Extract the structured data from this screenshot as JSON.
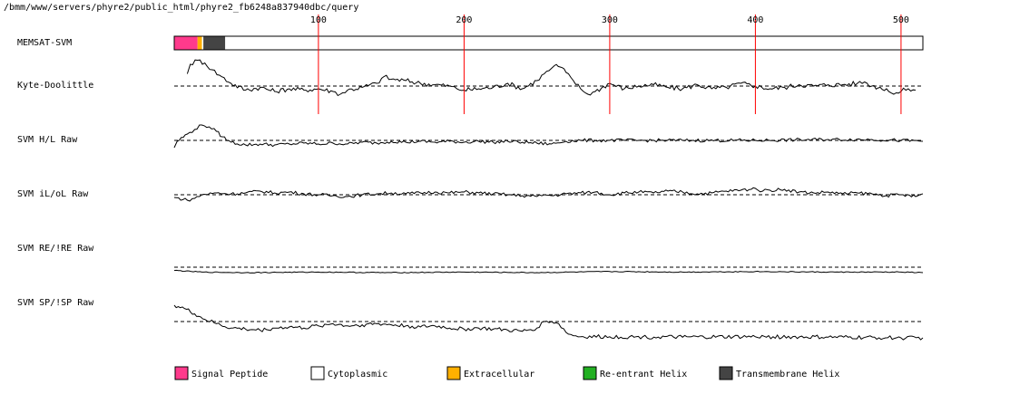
{
  "title": "/bmm/www/servers/phyre2/public_html/phyre2_fb6248a837940dbc/query",
  "chart_data": {
    "type": "line",
    "sequence_length": 515,
    "x_ticks": [
      100,
      200,
      300,
      400,
      500
    ],
    "tracks": [
      {
        "name": "MEMSAT-SVM",
        "kind": "topology",
        "segments": [
          {
            "label": "Signal Peptide",
            "start": 1,
            "end": 17
          },
          {
            "label": "Extracellular",
            "start": 17,
            "end": 20
          },
          {
            "label": "Cytoplasmic",
            "start": 20,
            "end": 21
          },
          {
            "label": "Transmembrane Helix",
            "start": 21,
            "end": 36
          },
          {
            "label": "Cytoplasmic",
            "start": 36,
            "end": 515
          }
        ]
      },
      {
        "name": "Kyte-Doolittle",
        "kind": "line",
        "ylim": [
          -1,
          1
        ],
        "baseline": 0,
        "points": [
          [
            10,
            0.45
          ],
          [
            12,
            0.8
          ],
          [
            17,
            0.95
          ],
          [
            22,
            0.85
          ],
          [
            27,
            0.6
          ],
          [
            32,
            0.4
          ],
          [
            40,
            0.1
          ],
          [
            50,
            -0.15
          ],
          [
            60,
            -0.05
          ],
          [
            70,
            -0.2
          ],
          [
            80,
            -0.1
          ],
          [
            90,
            -0.15
          ],
          [
            100,
            -0.1
          ],
          [
            110,
            -0.2
          ],
          [
            115,
            -0.3
          ],
          [
            120,
            -0.15
          ],
          [
            130,
            -0.05
          ],
          [
            140,
            0.1
          ],
          [
            145,
            0.35
          ],
          [
            150,
            0.25
          ],
          [
            160,
            0.2
          ],
          [
            170,
            0.1
          ],
          [
            180,
            0.05
          ],
          [
            190,
            0.0
          ],
          [
            195,
            -0.1
          ],
          [
            200,
            -0.15
          ],
          [
            210,
            -0.1
          ],
          [
            220,
            -0.05
          ],
          [
            230,
            0.1
          ],
          [
            240,
            -0.1
          ],
          [
            250,
            0.2
          ],
          [
            255,
            0.45
          ],
          [
            260,
            0.65
          ],
          [
            262,
            0.75
          ],
          [
            266,
            0.7
          ],
          [
            270,
            0.5
          ],
          [
            275,
            0.2
          ],
          [
            280,
            -0.1
          ],
          [
            285,
            -0.3
          ],
          [
            290,
            -0.2
          ],
          [
            300,
            0.1
          ],
          [
            310,
            -0.1
          ],
          [
            320,
            0.0
          ],
          [
            330,
            0.05
          ],
          [
            340,
            -0.05
          ],
          [
            350,
            -0.1
          ],
          [
            360,
            0.05
          ],
          [
            370,
            -0.1
          ],
          [
            380,
            -0.05
          ],
          [
            390,
            0.1
          ],
          [
            400,
            0.0
          ],
          [
            410,
            -0.1
          ],
          [
            420,
            -0.05
          ],
          [
            430,
            0.05
          ],
          [
            440,
            0.0
          ],
          [
            450,
            0.05
          ],
          [
            460,
            0.05
          ],
          [
            470,
            0.1
          ],
          [
            475,
            0.15
          ],
          [
            480,
            0.0
          ],
          [
            490,
            -0.1
          ],
          [
            495,
            -0.3
          ],
          [
            500,
            -0.2
          ],
          [
            505,
            -0.1
          ],
          [
            510,
            -0.15
          ]
        ]
      },
      {
        "name": "SVM H/L Raw",
        "kind": "line",
        "ylim": [
          -1,
          1
        ],
        "baseline": 0,
        "points": [
          [
            1,
            -0.4
          ],
          [
            3,
            -0.05
          ],
          [
            10,
            0.35
          ],
          [
            15,
            0.6
          ],
          [
            20,
            0.85
          ],
          [
            25,
            0.75
          ],
          [
            30,
            0.5
          ],
          [
            34,
            0.2
          ],
          [
            40,
            -0.1
          ],
          [
            50,
            -0.25
          ],
          [
            60,
            -0.2
          ],
          [
            70,
            -0.25
          ],
          [
            80,
            -0.2
          ],
          [
            90,
            -0.15
          ],
          [
            100,
            -0.2
          ],
          [
            110,
            -0.15
          ],
          [
            120,
            -0.2
          ],
          [
            130,
            -0.1
          ],
          [
            140,
            -0.15
          ],
          [
            150,
            -0.05
          ],
          [
            160,
            -0.1
          ],
          [
            170,
            -0.05
          ],
          [
            180,
            -0.1
          ],
          [
            190,
            -0.05
          ],
          [
            200,
            -0.1
          ],
          [
            210,
            -0.05
          ],
          [
            220,
            -0.1
          ],
          [
            230,
            -0.05
          ],
          [
            240,
            -0.1
          ],
          [
            250,
            -0.15
          ],
          [
            260,
            -0.2
          ],
          [
            270,
            -0.05
          ],
          [
            280,
            0.0
          ],
          [
            290,
            0.0
          ],
          [
            300,
            0.0
          ],
          [
            320,
            0.0
          ],
          [
            350,
            0.0
          ],
          [
            400,
            0.0
          ],
          [
            450,
            0.05
          ],
          [
            480,
            0.05
          ],
          [
            500,
            0.0
          ],
          [
            515,
            -0.05
          ]
        ]
      },
      {
        "name": "SVM iL/oL Raw",
        "kind": "line",
        "ylim": [
          -1,
          1
        ],
        "baseline": 0,
        "points": [
          [
            1,
            -0.15
          ],
          [
            10,
            -0.3
          ],
          [
            15,
            -0.2
          ],
          [
            20,
            0.0
          ],
          [
            30,
            0.1
          ],
          [
            40,
            0.05
          ],
          [
            50,
            0.1
          ],
          [
            60,
            0.2
          ],
          [
            70,
            0.1
          ],
          [
            80,
            0.15
          ],
          [
            90,
            0.05
          ],
          [
            100,
            0.0
          ],
          [
            110,
            -0.05
          ],
          [
            120,
            -0.1
          ],
          [
            130,
            0.0
          ],
          [
            140,
            0.05
          ],
          [
            150,
            0.1
          ],
          [
            160,
            0.05
          ],
          [
            170,
            0.1
          ],
          [
            180,
            0.15
          ],
          [
            190,
            0.1
          ],
          [
            200,
            0.15
          ],
          [
            210,
            0.1
          ],
          [
            220,
            0.05
          ],
          [
            230,
            0.0
          ],
          [
            240,
            -0.05
          ],
          [
            250,
            -0.1
          ],
          [
            255,
            0.0
          ],
          [
            260,
            -0.05
          ],
          [
            270,
            0.05
          ],
          [
            280,
            0.1
          ],
          [
            290,
            0.15
          ],
          [
            300,
            0.0
          ],
          [
            310,
            0.1
          ],
          [
            320,
            0.15
          ],
          [
            330,
            0.1
          ],
          [
            340,
            0.2
          ],
          [
            350,
            0.15
          ],
          [
            360,
            0.05
          ],
          [
            370,
            0.1
          ],
          [
            380,
            0.2
          ],
          [
            390,
            0.25
          ],
          [
            400,
            0.35
          ],
          [
            405,
            0.2
          ],
          [
            410,
            0.25
          ],
          [
            420,
            0.3
          ],
          [
            430,
            0.15
          ],
          [
            440,
            0.1
          ],
          [
            450,
            0.15
          ],
          [
            460,
            0.05
          ],
          [
            470,
            0.1
          ],
          [
            480,
            0.05
          ],
          [
            490,
            -0.05
          ],
          [
            500,
            0.0
          ],
          [
            510,
            -0.1
          ],
          [
            515,
            0.05
          ]
        ]
      },
      {
        "name": "SVM RE/!RE Raw",
        "kind": "line",
        "ylim": [
          -1,
          1
        ],
        "baseline": 0,
        "points": [
          [
            1,
            -0.3
          ],
          [
            20,
            -0.45
          ],
          [
            50,
            -0.5
          ],
          [
            100,
            -0.45
          ],
          [
            150,
            -0.5
          ],
          [
            200,
            -0.45
          ],
          [
            250,
            -0.5
          ],
          [
            300,
            -0.4
          ],
          [
            350,
            -0.45
          ],
          [
            400,
            -0.4
          ],
          [
            450,
            -0.45
          ],
          [
            500,
            -0.45
          ],
          [
            515,
            -0.5
          ]
        ]
      },
      {
        "name": "SVM SP/!SP Raw",
        "kind": "line",
        "ylim": [
          -1,
          1
        ],
        "baseline": 0,
        "points": [
          [
            1,
            0.75
          ],
          [
            8,
            0.6
          ],
          [
            15,
            0.35
          ],
          [
            22,
            0.1
          ],
          [
            30,
            -0.1
          ],
          [
            40,
            -0.3
          ],
          [
            50,
            -0.35
          ],
          [
            60,
            -0.4
          ],
          [
            70,
            -0.3
          ],
          [
            80,
            -0.25
          ],
          [
            90,
            -0.3
          ],
          [
            100,
            -0.2
          ],
          [
            110,
            -0.1
          ],
          [
            120,
            -0.2
          ],
          [
            130,
            -0.15
          ],
          [
            140,
            -0.1
          ],
          [
            150,
            -0.15
          ],
          [
            160,
            -0.2
          ],
          [
            170,
            -0.25
          ],
          [
            180,
            -0.2
          ],
          [
            190,
            -0.3
          ],
          [
            200,
            -0.35
          ],
          [
            210,
            -0.3
          ],
          [
            220,
            -0.35
          ],
          [
            230,
            -0.4
          ],
          [
            240,
            -0.45
          ],
          [
            250,
            -0.3
          ],
          [
            255,
            0.0
          ],
          [
            260,
            0.0
          ],
          [
            265,
            -0.1
          ],
          [
            270,
            -0.5
          ],
          [
            275,
            -0.65
          ],
          [
            280,
            -0.7
          ],
          [
            300,
            -0.7
          ],
          [
            350,
            -0.72
          ],
          [
            400,
            -0.7
          ],
          [
            450,
            -0.72
          ],
          [
            500,
            -0.75
          ],
          [
            515,
            -0.75
          ]
        ]
      }
    ],
    "legend": [
      {
        "label": "Signal Peptide",
        "color": "#ff3a8c"
      },
      {
        "label": "Cytoplasmic",
        "color": "#ffffff"
      },
      {
        "label": "Extracellular",
        "color": "#ffb000"
      },
      {
        "label": "Re-entrant Helix",
        "color": "#22b022"
      },
      {
        "label": "Transmembrane Helix",
        "color": "#444444"
      }
    ],
    "grid": "red vertical lines at tick positions spanning the first two tracks"
  }
}
